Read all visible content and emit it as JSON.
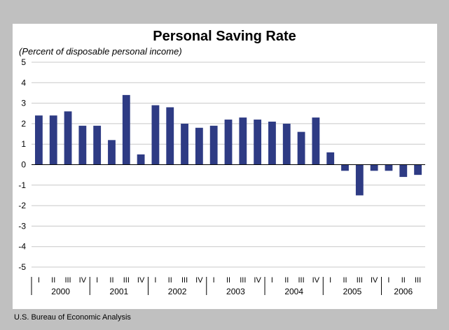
{
  "chart_data": {
    "type": "bar",
    "title": "Personal Saving Rate",
    "subtitle": "(Percent of disposable personal income)",
    "source": "U.S. Bureau of Economic Analysis",
    "ylim": [
      -5,
      5
    ],
    "yticks": [
      5,
      4,
      3,
      2,
      1,
      0,
      -1,
      -2,
      -3,
      -4,
      -5
    ],
    "grid": true,
    "bar_color": "#2e3b84",
    "categories": [
      "2000 I",
      "2000 II",
      "2000 III",
      "2000 IV",
      "2001 I",
      "2001 II",
      "2001 III",
      "2001 IV",
      "2002 I",
      "2002 II",
      "2002 III",
      "2002 IV",
      "2003 I",
      "2003 II",
      "2003 III",
      "2003 IV",
      "2004 I",
      "2004 II",
      "2004 III",
      "2004 IV",
      "2005 I",
      "2005 II",
      "2005 III",
      "2005 IV",
      "2006 I",
      "2006 II",
      "2006 III"
    ],
    "quarter_labels": [
      "I",
      "II",
      "III",
      "IV",
      "I",
      "II",
      "III",
      "IV",
      "I",
      "II",
      "III",
      "IV",
      "I",
      "II",
      "III",
      "IV",
      "I",
      "II",
      "III",
      "IV",
      "I",
      "II",
      "III",
      "IV",
      "I",
      "II",
      "III"
    ],
    "year_labels": [
      "2000",
      "2001",
      "2002",
      "2003",
      "2004",
      "2005",
      "2006"
    ],
    "values": [
      2.4,
      2.4,
      2.6,
      1.9,
      1.9,
      1.2,
      3.4,
      0.5,
      2.9,
      2.8,
      2.0,
      1.8,
      1.9,
      2.2,
      2.3,
      2.2,
      2.1,
      2.0,
      1.6,
      2.3,
      0.6,
      -0.3,
      -1.5,
      -0.3,
      -0.3,
      -0.6,
      -0.5
    ]
  }
}
